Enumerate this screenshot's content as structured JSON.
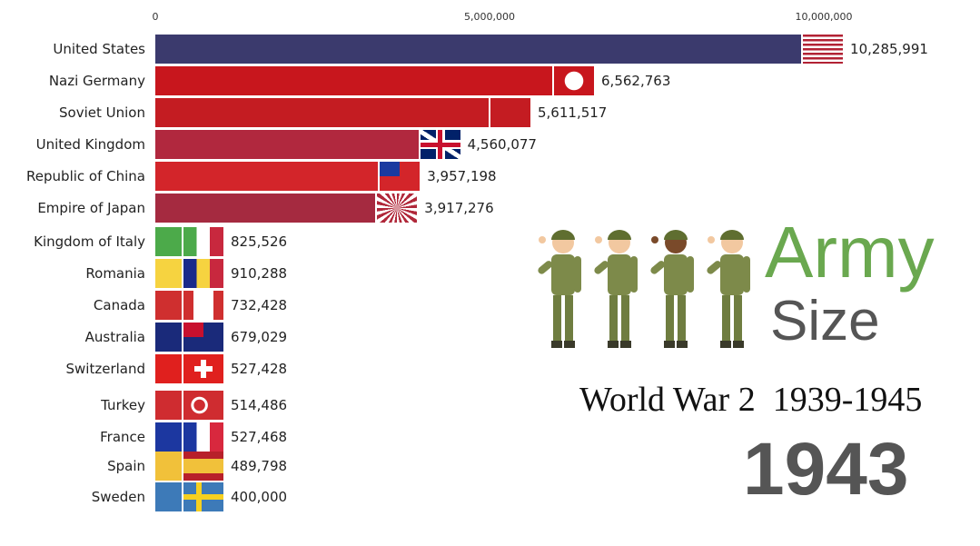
{
  "chart_data": {
    "type": "bar",
    "orientation": "horizontal",
    "title": "Army Size",
    "subtitle": "World War 2  1939-1945",
    "year": "1943",
    "xlim": [
      0,
      11000000
    ],
    "x_ticks": [
      {
        "value": 0,
        "label": "0"
      },
      {
        "value": 5000000,
        "label": "5,000,000"
      },
      {
        "value": 10000000,
        "label": "10,000,000"
      }
    ],
    "bars": [
      {
        "name": "United States",
        "value": 10285991,
        "label": "10,285,991",
        "color": "#3b3a6d",
        "flag": "us"
      },
      {
        "name": "Nazi Germany",
        "value": 6562763,
        "label": "6,562,763",
        "color": "#c8161d",
        "flag": "de"
      },
      {
        "name": "Soviet Union",
        "value": 5611517,
        "label": "5,611,517",
        "color": "#c41c22",
        "flag": "su"
      },
      {
        "name": "United Kingdom",
        "value": 4560077,
        "label": "4,560,077",
        "color": "#b1283e",
        "flag": "uk"
      },
      {
        "name": "Republic of China",
        "value": 3957198,
        "label": "3,957,198",
        "color": "#d3252a",
        "flag": "roc"
      },
      {
        "name": "Empire of Japan",
        "value": 3917276,
        "label": "3,917,276",
        "color": "#a52a40",
        "flag": "jp"
      },
      {
        "name": "Kingdom of Italy",
        "value": 825526,
        "label": "825,526",
        "color": "#4caa4a",
        "flag": "it"
      },
      {
        "name": "Romania",
        "value": 910288,
        "label": "910,288",
        "color": "#f6d340",
        "flag": "ro"
      },
      {
        "name": "Canada",
        "value": 732428,
        "label": "732,428",
        "color": "#cf2f2f",
        "flag": "ca"
      },
      {
        "name": "Australia",
        "value": 679029,
        "label": "679,029",
        "color": "#1a2a7a",
        "flag": "au"
      },
      {
        "name": "Switzerland",
        "value": 527428,
        "label": "527,428",
        "color": "#e0201e",
        "flag": "ch"
      },
      {
        "name": "Turkey",
        "value": 514486,
        "label": "514,486",
        "color": "#cf2c30",
        "flag": "tr"
      },
      {
        "name": "France",
        "value": 527468,
        "label": "527,468",
        "color": "#1c37a0",
        "flag": "fr"
      },
      {
        "name": "Spain",
        "value": 489798,
        "label": "489,798",
        "color": "#f1c13a",
        "flag": "es"
      },
      {
        "name": "Sweden",
        "value": 400000,
        "label": "400,000",
        "color": "#3d7ab8",
        "flag": "se"
      }
    ]
  },
  "branding": {
    "word1": "Army",
    "word2": "Size"
  }
}
